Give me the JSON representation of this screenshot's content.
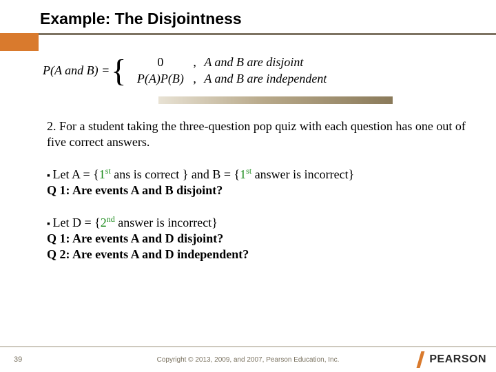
{
  "title": "Example: The Disjointness",
  "formula": {
    "lhs": "P(A and B) = ",
    "case1_left": "0",
    "case1_right": "A and B are disjoint",
    "case2_left": "P(A)P(B)",
    "case2_right": "A and B are independent",
    "comma": ","
  },
  "para1": "2. For a student taking the three-question pop quiz with each question has one out of five correct answers.",
  "letA_pre": "Let A = {",
  "first_ord": "1",
  "st": "st",
  "letA_mid": "  ans is correct }  and B = {",
  "letA_end": "  answer is incorrect}",
  "q1a": "Q 1: Are events A and B disjoint?",
  "letD_pre": "Let D = {",
  "second_ord": "2",
  "nd": "nd",
  "letD_end": "   answer is incorrect}",
  "q1b": "Q 1: Are events A and D disjoint?",
  "q2": "Q 2: Are events A and D independent?",
  "slide_number": "39",
  "copyright": "Copyright © 2013, 2009, and 2007, Pearson Education, Inc.",
  "brand": "PEARSON",
  "colors": {
    "accent_orange": "#d97a2d",
    "underline": "#7d7362",
    "green": "#1a8a1a"
  }
}
